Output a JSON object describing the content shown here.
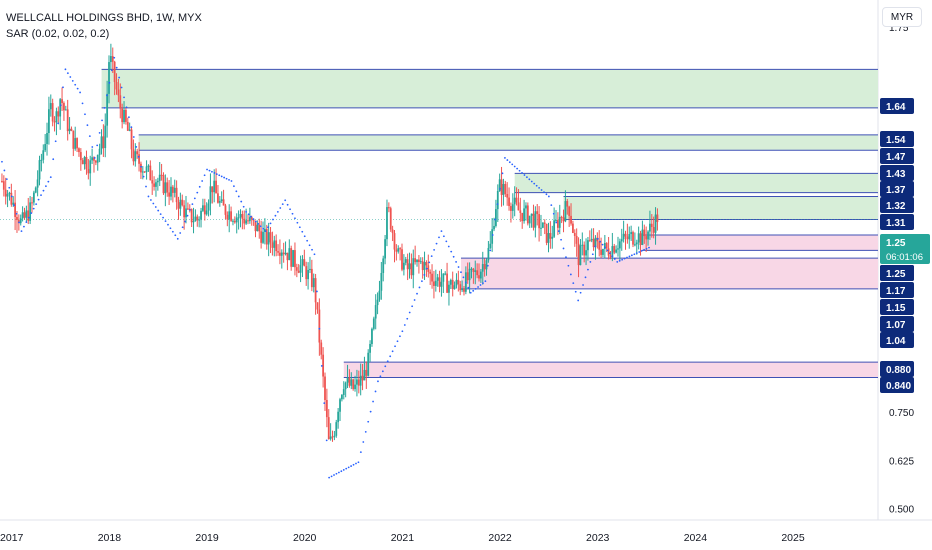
{
  "header": {
    "title": "WELLCALL HOLDINGS BHD, 1W, MYX",
    "indicator": "SAR (0.02, 0.02, 0.2)",
    "currency": "MYR"
  },
  "colors": {
    "up": "#26a69a",
    "down": "#ef5350",
    "sar": "#2962ff",
    "zone_line": "#3f51b5",
    "resistance_fill": "#d7eed8",
    "support_fill": "#f8d7e6",
    "label_bg": "#0d2a7a",
    "price_bg": "#26a69a"
  },
  "chart_data": {
    "type": "candlestick",
    "symbol": "WELLCALL HOLDINGS BHD",
    "interval": "1W",
    "exchange": "MYX",
    "x_axis": {
      "range": [
        2016.88,
        2025.87
      ],
      "tick_labels": [
        "2017",
        "2018",
        "2019",
        "2020",
        "2021",
        "2022",
        "2023",
        "2024",
        "2025"
      ]
    },
    "y_axis": {
      "range": [
        0.47,
        1.82
      ],
      "tick_labels": [
        "1.75",
        "0.750",
        "0.625",
        "0.500"
      ]
    },
    "last_price": "1.25",
    "countdown": "06:01:06",
    "price_path": [
      [
        2016.9,
        1.35
      ],
      [
        2017.0,
        1.3
      ],
      [
        2017.1,
        1.24
      ],
      [
        2017.2,
        1.28
      ],
      [
        2017.3,
        1.4
      ],
      [
        2017.4,
        1.54
      ],
      [
        2017.45,
        1.51
      ],
      [
        2017.5,
        1.57
      ],
      [
        2017.6,
        1.47
      ],
      [
        2017.7,
        1.42
      ],
      [
        2017.8,
        1.39
      ],
      [
        2017.95,
        1.46
      ],
      [
        2018.0,
        1.68
      ],
      [
        2018.1,
        1.55
      ],
      [
        2018.2,
        1.47
      ],
      [
        2018.25,
        1.41
      ],
      [
        2018.3,
        1.4
      ],
      [
        2018.4,
        1.37
      ],
      [
        2018.5,
        1.35
      ],
      [
        2018.6,
        1.33
      ],
      [
        2018.7,
        1.3
      ],
      [
        2018.8,
        1.26
      ],
      [
        2018.9,
        1.25
      ],
      [
        2019.0,
        1.3
      ],
      [
        2019.05,
        1.34
      ],
      [
        2019.15,
        1.28
      ],
      [
        2019.3,
        1.26
      ],
      [
        2019.4,
        1.25
      ],
      [
        2019.5,
        1.23
      ],
      [
        2019.6,
        1.2
      ],
      [
        2019.7,
        1.19
      ],
      [
        2019.8,
        1.17
      ],
      [
        2019.9,
        1.14
      ],
      [
        2020.0,
        1.12
      ],
      [
        2020.1,
        1.08
      ],
      [
        2020.2,
        0.8
      ],
      [
        2020.25,
        0.66
      ],
      [
        2020.3,
        0.7
      ],
      [
        2020.35,
        0.78
      ],
      [
        2020.4,
        0.83
      ],
      [
        2020.5,
        0.81
      ],
      [
        2020.6,
        0.84
      ],
      [
        2020.65,
        0.88
      ],
      [
        2020.75,
        1.05
      ],
      [
        2020.85,
        1.28
      ],
      [
        2020.95,
        1.16
      ],
      [
        2021.05,
        1.12
      ],
      [
        2021.2,
        1.14
      ],
      [
        2021.3,
        1.1
      ],
      [
        2021.4,
        1.09
      ],
      [
        2021.5,
        1.08
      ],
      [
        2021.6,
        1.08
      ],
      [
        2021.7,
        1.1
      ],
      [
        2021.8,
        1.12
      ],
      [
        2021.9,
        1.18
      ],
      [
        2021.95,
        1.28
      ],
      [
        2022.0,
        1.34
      ],
      [
        2022.1,
        1.3
      ],
      [
        2022.2,
        1.27
      ],
      [
        2022.3,
        1.26
      ],
      [
        2022.4,
        1.24
      ],
      [
        2022.5,
        1.2
      ],
      [
        2022.6,
        1.25
      ],
      [
        2022.7,
        1.29
      ],
      [
        2022.75,
        1.22
      ],
      [
        2022.8,
        1.15
      ],
      [
        2022.9,
        1.19
      ],
      [
        2023.0,
        1.18
      ],
      [
        2023.1,
        1.17
      ],
      [
        2023.2,
        1.19
      ],
      [
        2023.3,
        1.2
      ],
      [
        2023.4,
        1.21
      ],
      [
        2023.45,
        1.2
      ],
      [
        2023.55,
        1.23
      ],
      [
        2023.62,
        1.26
      ]
    ],
    "sar_path": [
      [
        2016.9,
        1.4
      ],
      [
        2017.1,
        1.22
      ],
      [
        2017.4,
        1.36
      ],
      [
        2017.55,
        1.64
      ],
      [
        2017.7,
        1.58
      ],
      [
        2017.85,
        1.41
      ],
      [
        2018.05,
        1.67
      ],
      [
        2018.4,
        1.31
      ],
      [
        2018.7,
        1.2
      ],
      [
        2019.0,
        1.38
      ],
      [
        2019.25,
        1.35
      ],
      [
        2019.4,
        1.27
      ],
      [
        2019.6,
        1.22
      ],
      [
        2019.8,
        1.3
      ],
      [
        2020.1,
        1.16
      ],
      [
        2020.25,
        0.58
      ],
      [
        2020.55,
        0.62
      ],
      [
        2020.75,
        0.83
      ],
      [
        2021.0,
        0.96
      ],
      [
        2021.4,
        1.22
      ],
      [
        2021.7,
        1.06
      ],
      [
        2021.85,
        1.09
      ],
      [
        2022.05,
        1.41
      ],
      [
        2022.5,
        1.31
      ],
      [
        2022.8,
        1.04
      ],
      [
        2023.0,
        1.2
      ],
      [
        2023.2,
        1.14
      ],
      [
        2023.55,
        1.18
      ]
    ],
    "zones": [
      {
        "type": "resistance",
        "top": 1.64,
        "bottom": 1.54,
        "start_year": 2017.92
      },
      {
        "type": "resistance",
        "top": 1.47,
        "bottom": 1.43,
        "start_year": 2018.3
      },
      {
        "type": "resistance",
        "top": 1.37,
        "bottom": 1.32,
        "start_year": 2022.15
      },
      {
        "type": "resistance",
        "top": 1.31,
        "bottom": 1.25,
        "start_year": 2022.65
      },
      {
        "type": "support",
        "top": 1.21,
        "bottom": 1.17,
        "start_year": 2023.45
      },
      {
        "type": "support",
        "top": 1.15,
        "bottom": 1.07,
        "start_year": 2021.6
      },
      {
        "type": "support",
        "top": 0.88,
        "bottom": 0.84,
        "start_year": 2020.4
      }
    ],
    "level_labels": [
      "1.64",
      "1.54",
      "1.47",
      "1.43",
      "1.37",
      "1.32",
      "1.31",
      "1.25",
      "1.17",
      "1.15",
      "1.07",
      "1.04",
      "0.880",
      "0.840"
    ],
    "support_level_label": "1.25"
  }
}
